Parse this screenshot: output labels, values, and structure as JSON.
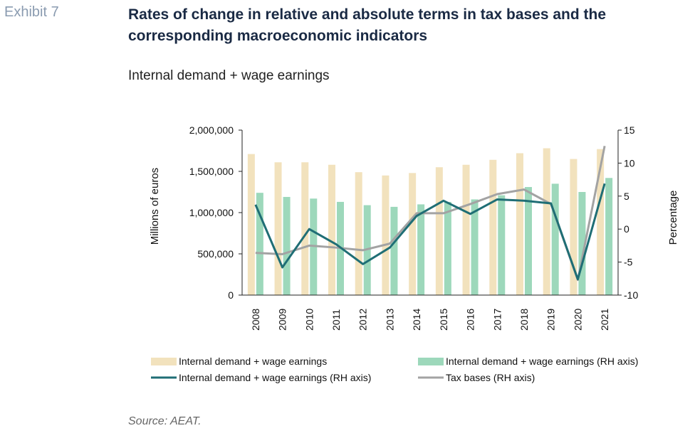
{
  "exhibit_label": "Exhibit 7",
  "title": "Rates of change in relative and absolute terms in tax bases and the corresponding macroeconomic indicators",
  "subtitle": "Internal demand + wage earnings",
  "source": "Source: AEAT.",
  "colors": {
    "bar_left": "#f2e2bd",
    "bar_right": "#9dd8bb",
    "line_teal": "#1f6e75",
    "line_gray": "#a3a3a3"
  },
  "chart_data": {
    "type": "bar",
    "categories": [
      "2008",
      "2009",
      "2010",
      "2011",
      "2012",
      "2013",
      "2014",
      "2015",
      "2016",
      "2017",
      "2018",
      "2019",
      "2020",
      "2021"
    ],
    "ylabel": "Millions  of euros",
    "y2label": "Percentage",
    "ylim": [
      0,
      2000000
    ],
    "y2lim": [
      -10,
      15
    ],
    "yticks": [
      "2,000,000",
      "1,500,000",
      "1,000,000",
      "500,000",
      "0"
    ],
    "y2ticks": [
      "15",
      "10",
      "5",
      "0",
      "-5",
      "-10"
    ],
    "legend_position": "bottom",
    "series": [
      {
        "name": "Internal demand + wage earnings",
        "kind": "bar",
        "axis": "left",
        "values": [
          1710000,
          1610000,
          1610000,
          1580000,
          1490000,
          1450000,
          1480000,
          1550000,
          1580000,
          1640000,
          1720000,
          1780000,
          1650000,
          1770000
        ]
      },
      {
        "name": "Internal demand + wage earnings (RH axis)",
        "kind": "bar",
        "axis": "right",
        "values": [
          1240000,
          1190000,
          1170000,
          1130000,
          1090000,
          1070000,
          1100000,
          1130000,
          1160000,
          1210000,
          1310000,
          1350000,
          1250000,
          1420000
        ]
      },
      {
        "name": "Internal demand + wage earnings (RH axis)",
        "kind": "line",
        "axis": "right",
        "values": [
          3.7,
          -5.8,
          0.0,
          -2.3,
          -5.3,
          -2.8,
          2.0,
          4.3,
          2.3,
          4.5,
          4.3,
          3.9,
          -7.6,
          6.9
        ]
      },
      {
        "name": "Tax bases (RH axis)",
        "kind": "line",
        "axis": "right",
        "values": [
          -3.6,
          -3.8,
          -2.5,
          -2.8,
          -3.2,
          -2.2,
          2.4,
          2.4,
          3.8,
          5.3,
          6.0,
          3.8,
          -7.7,
          12.6
        ]
      }
    ]
  }
}
